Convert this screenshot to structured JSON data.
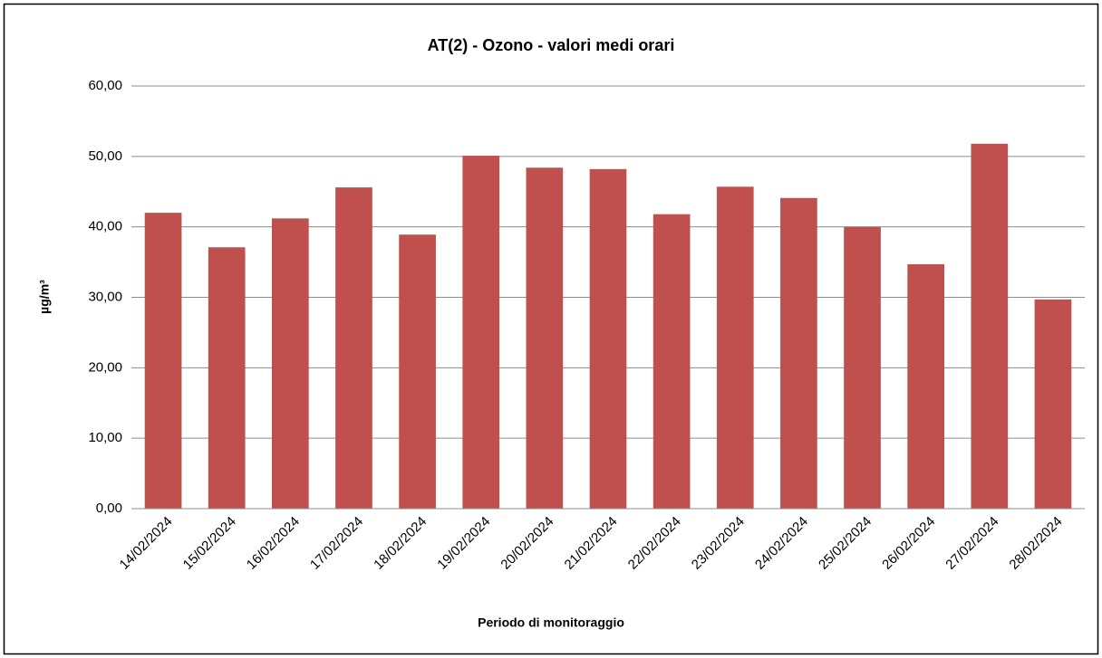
{
  "chart_data": {
    "type": "bar",
    "title": "AT(2) -  Ozono - valori medi orari",
    "x_label": "Periodo di  monitoraggio",
    "y_label": "µg/m³",
    "categories": [
      "14/02/2024",
      "15/02/2024",
      "16/02/2024",
      "17/02/2024",
      "18/02/2024",
      "19/02/2024",
      "20/02/2024",
      "21/02/2024",
      "22/02/2024",
      "23/02/2024",
      "24/02/2024",
      "25/02/2024",
      "26/02/2024",
      "27/02/2024",
      "28/02/2024"
    ],
    "values": [
      42.0,
      37.1,
      41.2,
      45.6,
      38.9,
      50.1,
      48.4,
      48.2,
      41.8,
      45.7,
      44.1,
      40.0,
      34.7,
      51.8,
      29.7
    ],
    "color": "#c0504d",
    "ylim": [
      0,
      60
    ],
    "yticks": [
      {
        "value": 0,
        "label": "0,00"
      },
      {
        "value": 10,
        "label": "10,00"
      },
      {
        "value": 20,
        "label": "20,00"
      },
      {
        "value": 30,
        "label": "30,00"
      },
      {
        "value": 40,
        "label": "40,00"
      },
      {
        "value": 50,
        "label": "50,00"
      },
      {
        "value": 60,
        "label": "60,00"
      }
    ],
    "grid": true
  }
}
